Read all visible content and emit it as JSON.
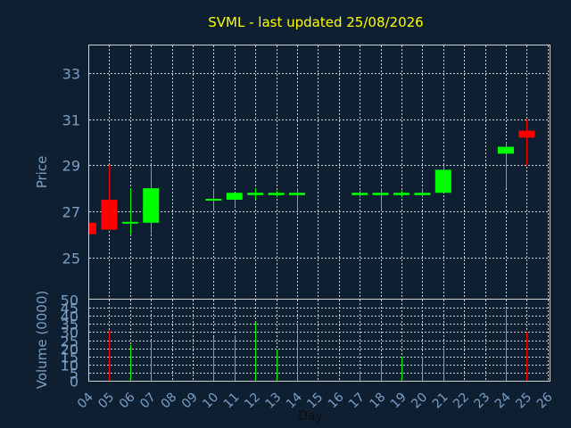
{
  "chart_data": {
    "type": "candlestick",
    "title": "SVML - last updated 25/08/2026",
    "xlabel": "Day",
    "x_tick_labels": [
      "04",
      "05",
      "06",
      "07",
      "08",
      "09",
      "10",
      "11",
      "12",
      "13",
      "14",
      "15",
      "16",
      "17",
      "18",
      "19",
      "20",
      "21",
      "22",
      "23",
      "24",
      "25",
      "26"
    ],
    "price_panel": {
      "ylabel": "Price",
      "ylim": [
        23.2,
        34.2
      ],
      "yticks": [
        25,
        27,
        29,
        31,
        33
      ],
      "grid": true
    },
    "volume_panel": {
      "ylabel": "Volume (0000)",
      "ylim": [
        0,
        50
      ],
      "yticks": [
        0,
        5,
        10,
        15,
        20,
        25,
        30,
        35,
        40,
        45,
        50
      ],
      "grid": true
    },
    "candles": [
      {
        "day": "04",
        "open": 26.5,
        "high": 26.5,
        "low": 26.0,
        "close": 26.0,
        "volume": 0
      },
      {
        "day": "05",
        "open": 27.5,
        "high": 29.0,
        "low": 26.2,
        "close": 26.2,
        "volume": 31
      },
      {
        "day": "06",
        "open": 26.5,
        "high": 28.0,
        "low": 26.0,
        "close": 26.5,
        "volume": 22
      },
      {
        "day": "07",
        "open": 26.5,
        "high": 29.0,
        "low": 26.0,
        "close": 28.0,
        "volume": 25
      },
      {
        "day": "10",
        "open": 27.5,
        "high": 28.0,
        "low": 27.0,
        "close": 27.5,
        "volume": 27
      },
      {
        "day": "11",
        "open": 27.5,
        "high": 27.8,
        "low": 27.2,
        "close": 27.8,
        "volume": 28
      },
      {
        "day": "12",
        "open": 27.7,
        "high": 28.0,
        "low": 27.5,
        "close": 27.8,
        "volume": 36
      },
      {
        "day": "13",
        "open": 27.7,
        "high": 27.9,
        "low": 27.6,
        "close": 27.8,
        "volume": 19
      },
      {
        "day": "14",
        "open": 27.7,
        "high": 28.0,
        "low": 27.0,
        "close": 27.8,
        "volume": 35
      },
      {
        "day": "17",
        "open": 27.7,
        "high": 27.9,
        "low": 27.6,
        "close": 27.8,
        "volume": 6
      },
      {
        "day": "18",
        "open": 27.7,
        "high": 28.0,
        "low": 27.0,
        "close": 27.8,
        "volume": 13
      },
      {
        "day": "19",
        "open": 27.7,
        "high": 27.9,
        "low": 27.6,
        "close": 27.8,
        "volume": 15
      },
      {
        "day": "20",
        "open": 27.7,
        "high": 28.0,
        "low": 27.6,
        "close": 27.8,
        "volume": 15
      },
      {
        "day": "21",
        "open": 27.8,
        "high": 29.0,
        "low": 27.8,
        "close": 28.8,
        "volume": 20
      },
      {
        "day": "24",
        "open": 29.5,
        "high": 30.0,
        "low": 28.0,
        "close": 29.8,
        "volume": 44
      },
      {
        "day": "25",
        "open": 30.5,
        "high": 31.0,
        "low": 29.0,
        "close": 30.2,
        "volume": 30
      }
    ],
    "colors": {
      "up": "#00ff00",
      "down": "#ff0000",
      "background": "#0e1f31",
      "plot_background": "#0e1f31",
      "grid": "#d0d0d0",
      "title": "#ffff00",
      "axis_text": "#7b9fc6",
      "xlabel": "#0d0d0d"
    }
  }
}
